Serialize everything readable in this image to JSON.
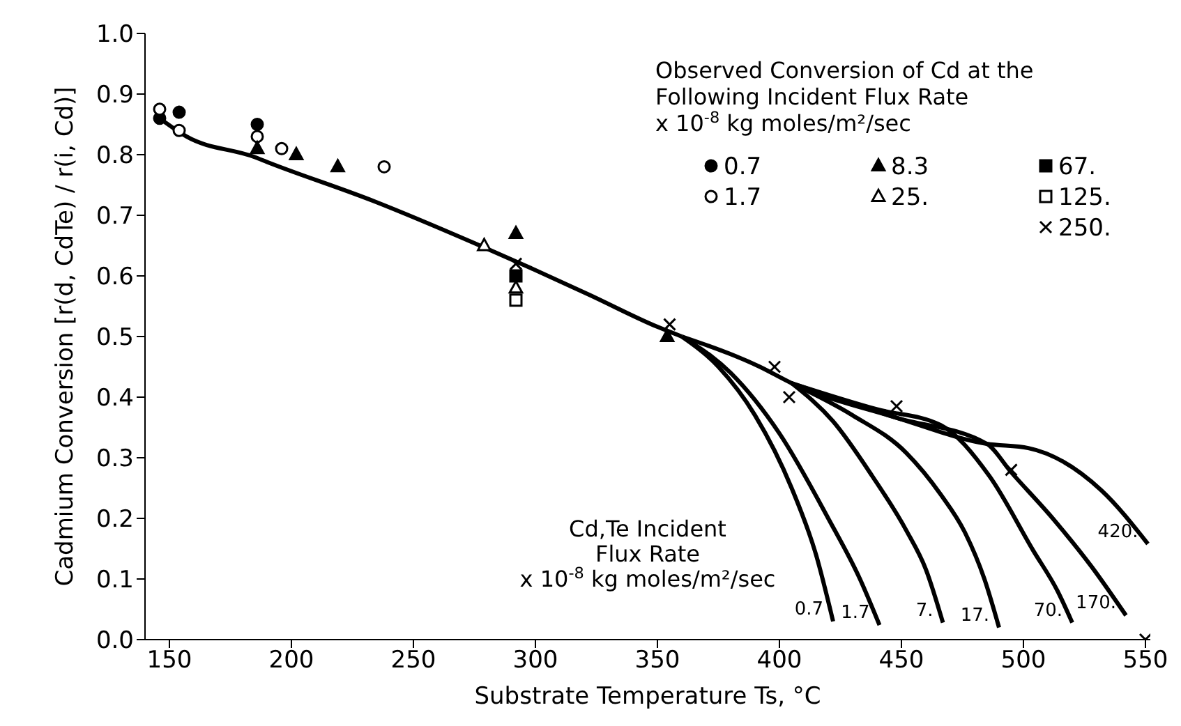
{
  "chart_data": {
    "type": "scatter",
    "xlabel": "Substrate Temperature Ts, °C",
    "ylabel": "Cadmium Conversion  [r(d, CdTe) / r(i, Cd)]",
    "legend_title": "Observed Conversion of Cd at the\nFollowing Incident Flux Rate\nx 10$^{-8}$ kg moles/m²/sec",
    "annotations": [
      "Cd,Te Incident\nFlux Rate\nx 10$^{-8}$ kg moles/m²/sec",
      {
        "text": "0.7",
        "x": 422,
        "y": 0.03
      },
      {
        "text": "1.7",
        "x": 441,
        "y": 0.024
      }
    ],
    "xlim": [
      140,
      552
    ],
    "xticks": [
      150,
      200,
      250,
      300,
      350,
      400,
      450,
      500,
      550
    ],
    "ylim": [
      0,
      1
    ],
    "yticks": [
      {
        "value": 0,
        "label": "0.0"
      },
      0.1,
      0.2,
      0.3,
      0.4,
      0.5,
      0.6,
      0.7,
      0.8,
      0.9,
      {
        "value": 1,
        "label": "1.0"
      }
    ],
    "grid": false,
    "legend": "top right",
    "series": [
      {
        "type": "line",
        "color": "#000000",
        "marker": "none",
        "line_style": "solid",
        "x": [
          146,
          157,
          185,
          190,
          234,
          275,
          297,
          322,
          350,
          360
        ],
        "values": [
          0.86,
          0.83,
          0.796,
          0.788,
          0.723,
          0.654,
          0.615,
          0.569,
          0.516,
          0.5
        ]
      },
      {
        "type": "line",
        "color": "#000000",
        "marker": "none",
        "line_style": "solid",
        "x": [
          360,
          375,
          390,
          405,
          415,
          422
        ],
        "values": [
          0.5,
          0.45,
          0.37,
          0.25,
          0.14,
          0.03
        ]
      },
      {
        "type": "line",
        "color": "#000000",
        "marker": "none",
        "line_style": "solid",
        "x": [
          360,
          380,
          400,
          420,
          433,
          441
        ],
        "values": [
          0.5,
          0.44,
          0.34,
          0.2,
          0.1,
          0.024
        ]
      },
      {
        "type": "line",
        "name": "7.",
        "color": "#000000",
        "marker": "none",
        "line_style": "solid",
        "x": [
          405,
          422,
          438,
          452,
          460,
          467
        ],
        "values": [
          0.423,
          0.36,
          0.27,
          0.18,
          0.116,
          0.028
        ]
      },
      {
        "type": "line",
        "name": "17.",
        "color": "#000000",
        "marker": "none",
        "line_style": "solid",
        "x": [
          405,
          430,
          452,
          466,
          476,
          484,
          490
        ],
        "values": [
          0.423,
          0.37,
          0.308,
          0.24,
          0.177,
          0.1,
          0.02
        ]
      },
      {
        "type": "line",
        "name": "70.",
        "color": "#000000",
        "marker": "none",
        "line_style": "solid",
        "x": [
          405,
          440,
          466,
          486,
          504,
          514,
          520
        ],
        "values": [
          0.423,
          0.38,
          0.354,
          0.27,
          0.147,
          0.08,
          0.028
        ]
      },
      {
        "type": "line",
        "name": "170.",
        "color": "#000000",
        "marker": "none",
        "line_style": "solid",
        "x": [
          405,
          448,
          485,
          495,
          512,
          528,
          542
        ],
        "values": [
          0.423,
          0.366,
          0.323,
          0.276,
          0.2,
          0.12,
          0.04
        ]
      },
      {
        "type": "line",
        "name": "420.",
        "color": "#000000",
        "marker": "none",
        "line_style": "solid",
        "x": [
          360,
          392,
          405,
          448,
          485,
          502,
          532,
          551
        ],
        "values": [
          0.5,
          0.45,
          0.423,
          0.366,
          0.323,
          0.316,
          0.246,
          0.158
        ]
      },
      {
        "name": "0.7",
        "color": "#000000",
        "marker": "circle",
        "x": [
          146,
          154,
          186
        ],
        "values": [
          0.86,
          0.87,
          0.85
        ]
      },
      {
        "name": "1.7",
        "color": "#000000",
        "marker": "circle-open",
        "x": [
          146,
          154,
          186,
          196,
          238
        ],
        "values": [
          0.875,
          0.84,
          0.83,
          0.81,
          0.78
        ]
      },
      {
        "name": "8.3",
        "color": "#000000",
        "marker": "triangle",
        "x": [
          186,
          202,
          219,
          292,
          354
        ],
        "values": [
          0.81,
          0.8,
          0.78,
          0.67,
          0.5
        ]
      },
      {
        "name": "25.",
        "color": "#000000",
        "marker": "triangle-open",
        "x": [
          279,
          292
        ],
        "values": [
          0.65,
          0.58
        ]
      },
      {
        "name": "67.",
        "color": "#000000",
        "marker": "square",
        "x": [
          292
        ],
        "values": [
          0.6
        ]
      },
      {
        "name": "125.",
        "color": "#000000",
        "marker": "square-open",
        "x": [
          292
        ],
        "values": [
          0.56
        ]
      },
      {
        "name": "250.",
        "color": "#000000",
        "marker": "cross",
        "x": [
          292,
          355,
          398,
          404,
          448,
          495,
          550
        ],
        "values": [
          0.62,
          0.52,
          0.45,
          0.4,
          0.385,
          0.28,
          0.0
        ]
      }
    ]
  }
}
